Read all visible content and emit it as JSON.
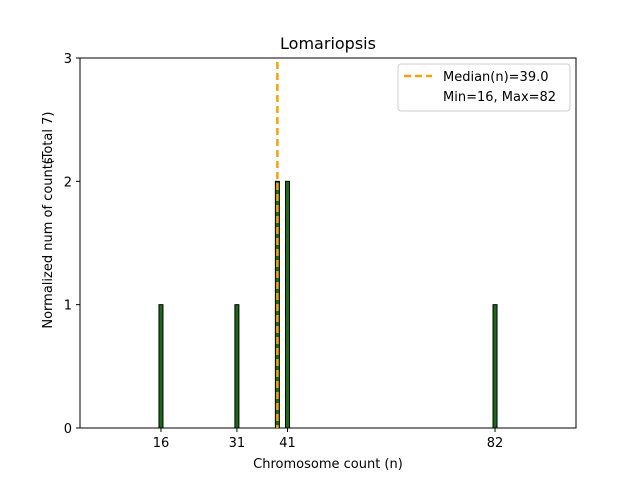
{
  "chart_data": {
    "type": "bar",
    "title": "Lomariopsis",
    "xlabel": "Chromosome count (n)",
    "ylabel": "Normalized num of counts",
    "ylabel_total": "(Total 7)",
    "x": [
      16,
      31,
      39,
      41,
      82
    ],
    "values": [
      1,
      1,
      2,
      2,
      1
    ],
    "xticks": [
      16,
      31,
      41,
      82
    ],
    "yticks": [
      0,
      1,
      2,
      3
    ],
    "xlim": [
      0,
      98
    ],
    "ylim": [
      0,
      3
    ],
    "bar_color": "#1a6b1a",
    "bar_edge_color": "#000000",
    "median": 39.0,
    "median_color": "#f0a30a",
    "legend": {
      "position": "top-right",
      "median_label": "Median(n)=39.0",
      "range_label": "Min=16, Max=82"
    }
  }
}
